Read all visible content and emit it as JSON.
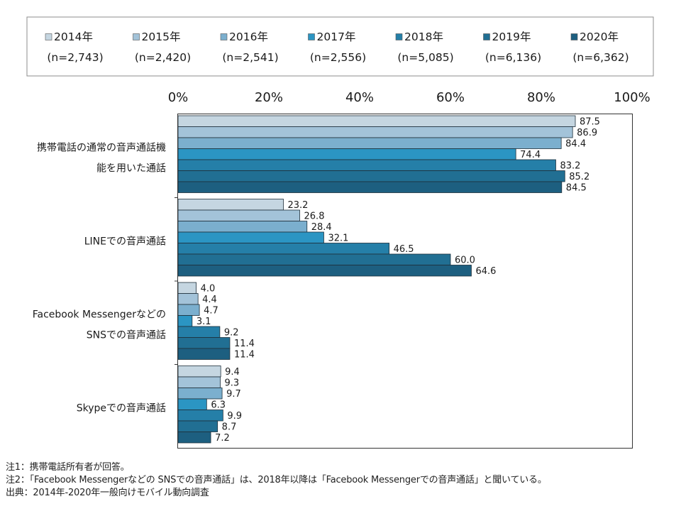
{
  "chart_data": {
    "type": "bar",
    "orientation": "horizontal",
    "categories": [
      [
        "携帯電話の通常の音声通話機",
        "能を用いた通話"
      ],
      [
        "LINEでの音声通話"
      ],
      [
        "Facebook Messengerなどの",
        "SNSでの音声通話"
      ],
      [
        "Skypeでの音声通話"
      ]
    ],
    "series": [
      {
        "name": "2014年",
        "n": "(n=2,743)",
        "color": "#c5d6e1",
        "values": [
          87.5,
          23.2,
          4.0,
          9.4
        ]
      },
      {
        "name": "2015年",
        "n": "(n=2,420)",
        "color": "#a3c3d9",
        "values": [
          86.9,
          26.8,
          4.4,
          9.3
        ]
      },
      {
        "name": "2016年",
        "n": "(n=2,541)",
        "color": "#7bafce",
        "values": [
          84.4,
          28.4,
          4.7,
          9.7
        ]
      },
      {
        "name": "2017年",
        "n": "(n=2,556)",
        "color": "#2b95c3",
        "values": [
          74.4,
          32.1,
          3.1,
          6.3
        ]
      },
      {
        "name": "2018年",
        "n": "(n=5,085)",
        "color": "#257fa8",
        "values": [
          83.2,
          46.5,
          9.2,
          9.9
        ]
      },
      {
        "name": "2019年",
        "n": "(n=6,136)",
        "color": "#216f93",
        "values": [
          85.2,
          60.0,
          11.4,
          8.7
        ]
      },
      {
        "name": "2020年",
        "n": "(n=6,362)",
        "color": "#1d5f80",
        "values": [
          84.5,
          64.6,
          11.4,
          7.2
        ]
      }
    ],
    "x_ticks": [
      "0%",
      "20%",
      "40%",
      "60%",
      "80%",
      "100%"
    ],
    "xlim": [
      0,
      100
    ],
    "legend_position": "top",
    "grid": false
  },
  "notes": [
    "注1：携帯電話所有者が回答。",
    "注2：「Facebook Messengerなどの SNSでの音声通話」は、2018年以降は「Facebook Messengerでの音声通話」と聞いている。",
    "出典：2014年-2020年一般向けモバイル動向調査"
  ]
}
